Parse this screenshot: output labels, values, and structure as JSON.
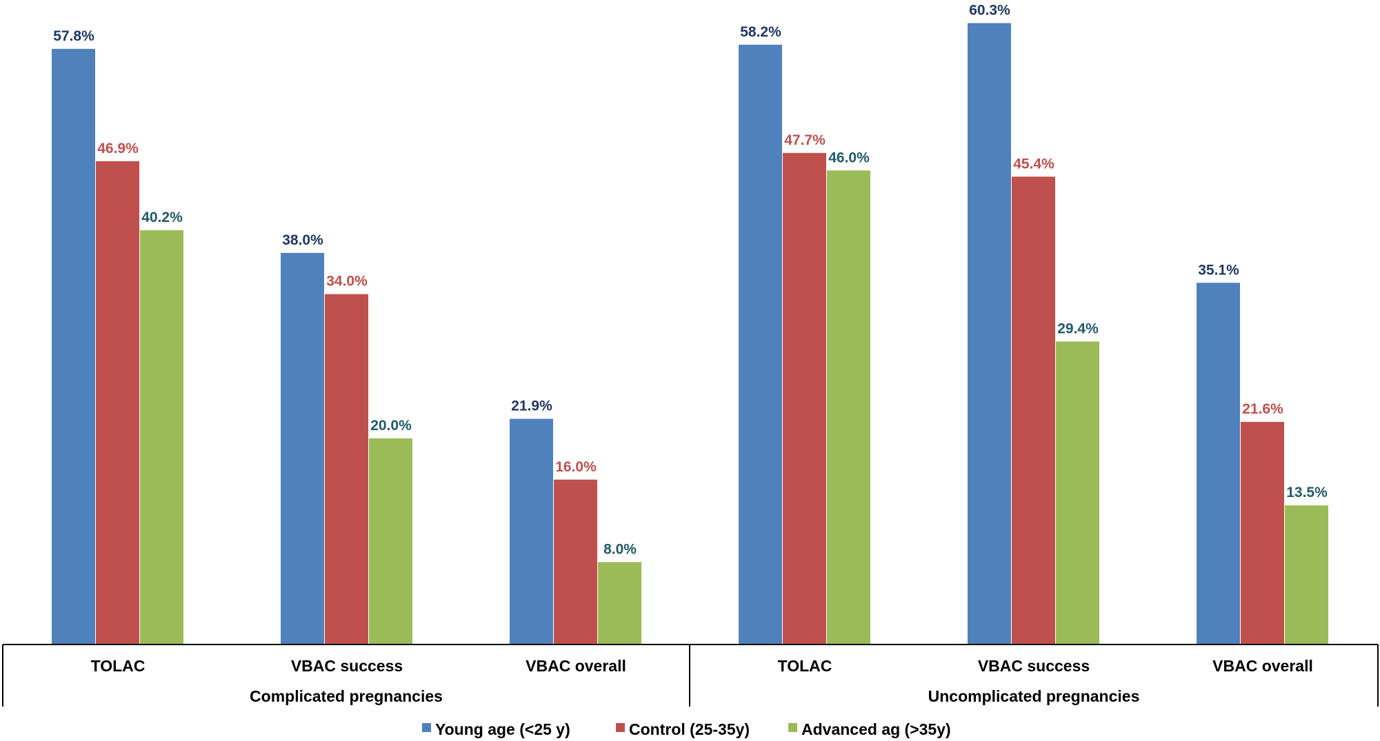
{
  "chart_data": {
    "type": "bar",
    "title": "",
    "xlabel": "",
    "ylabel": "",
    "ylim": [
      0,
      62
    ],
    "grid": false,
    "legend_position": "bottom",
    "groups": [
      {
        "label": "Complicated pregnancies",
        "categories": [
          "TOLAC",
          "VBAC success",
          "VBAC overall"
        ]
      },
      {
        "label": "Uncomplicated pregnancies",
        "categories": [
          "TOLAC",
          "VBAC success",
          "VBAC overall"
        ]
      }
    ],
    "categories": [
      "TOLAC",
      "VBAC success",
      "VBAC overall",
      "TOLAC",
      "VBAC success",
      "VBAC overall"
    ],
    "series": [
      {
        "name": "Young age (<25 y)",
        "color": "#4f81bd",
        "label_color": "#1f3864",
        "values": [
          57.8,
          38.0,
          21.9,
          58.2,
          60.3,
          35.1
        ],
        "labels": [
          "57.8%",
          "38.0%",
          "21.9%",
          "58.2%",
          "60.3%",
          "35.1%"
        ]
      },
      {
        "name": "Control (25-35y)",
        "color": "#c0504d",
        "label_color": "#c0504d",
        "values": [
          46.9,
          34.0,
          16.0,
          47.7,
          45.4,
          21.6
        ],
        "labels": [
          "46.9%",
          "34.0%",
          "16.0%",
          "47.7%",
          "45.4%",
          "21.6%"
        ]
      },
      {
        "name": "Advanced ag (>35y)",
        "color": "#9bbb59",
        "label_color": "#215968",
        "values": [
          40.2,
          20.0,
          8.0,
          46.0,
          29.4,
          13.5
        ],
        "labels": [
          "40.2%",
          "20.0%",
          "8.0%",
          "46.0%",
          "29.4%",
          "13.5%"
        ]
      }
    ]
  }
}
